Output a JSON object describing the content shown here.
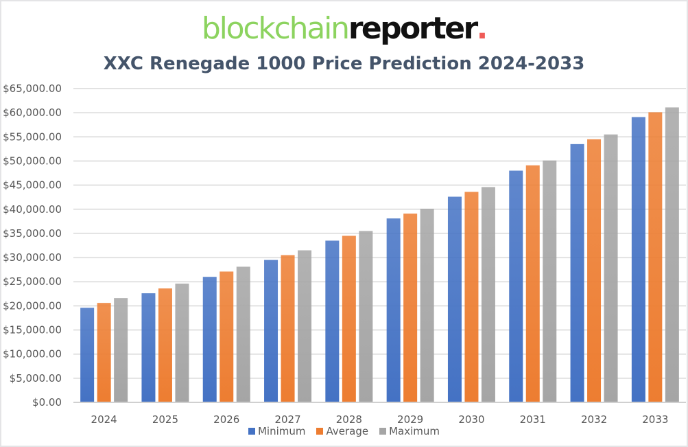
{
  "logo": {
    "part1": "blockchain",
    "part2": "reporter",
    "dot": "."
  },
  "chart_data": {
    "type": "bar",
    "title": "XXC Renegade 1000 Price Prediction 2024-2033",
    "xlabel": "",
    "ylabel": "",
    "ylim": [
      0,
      65000
    ],
    "ytick_step": 5000,
    "yticks": [
      "$0.00",
      "$5,000.00",
      "$10,000.00",
      "$15,000.00",
      "$20,000.00",
      "$25,000.00",
      "$30,000.00",
      "$35,000.00",
      "$40,000.00",
      "$45,000.00",
      "$50,000.00",
      "$55,000.00",
      "$60,000.00",
      "$65,000.00"
    ],
    "grid": true,
    "legend_position": "bottom",
    "categories": [
      "2024",
      "2025",
      "2026",
      "2027",
      "2028",
      "2029",
      "2030",
      "2031",
      "2032",
      "2033"
    ],
    "series": [
      {
        "name": "Minimum",
        "color": "#4472c4",
        "values": [
          19600,
          22600,
          26000,
          29500,
          33500,
          38100,
          42600,
          48000,
          53500,
          59100
        ]
      },
      {
        "name": "Average",
        "color": "#ed7d31",
        "values": [
          20600,
          23600,
          27100,
          30500,
          34500,
          39100,
          43600,
          49100,
          54500,
          60100
        ]
      },
      {
        "name": "Maximum",
        "color": "#a5a5a5",
        "values": [
          21600,
          24600,
          28100,
          31500,
          35500,
          40100,
          44600,
          50100,
          55500,
          61100
        ]
      }
    ]
  }
}
